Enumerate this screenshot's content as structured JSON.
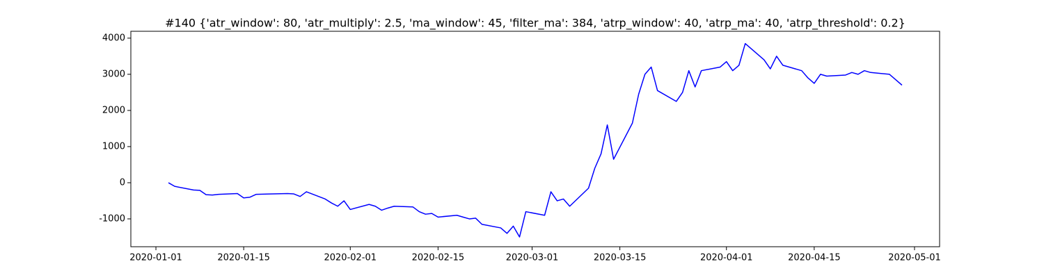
{
  "chart_data": {
    "type": "line",
    "title": "#140 {'atr_window': 80, 'atr_multiply': 2.5, 'ma_window': 45, 'filter_ma': 384, 'atrp_window': 40, 'atrp_ma': 40, 'atrp_threshold': 0.2}",
    "x": [
      "2020-01-03",
      "2020-01-04",
      "2020-01-07",
      "2020-01-08",
      "2020-01-09",
      "2020-01-10",
      "2020-01-11",
      "2020-01-14",
      "2020-01-15",
      "2020-01-16",
      "2020-01-17",
      "2020-01-22",
      "2020-01-23",
      "2020-01-24",
      "2020-01-25",
      "2020-01-28",
      "2020-01-29",
      "2020-01-30",
      "2020-01-31",
      "2020-02-01",
      "2020-02-04",
      "2020-02-05",
      "2020-02-06",
      "2020-02-07",
      "2020-02-08",
      "2020-02-11",
      "2020-02-12",
      "2020-02-13",
      "2020-02-14",
      "2020-02-15",
      "2020-02-18",
      "2020-02-19",
      "2020-02-20",
      "2020-02-21",
      "2020-02-22",
      "2020-02-25",
      "2020-02-26",
      "2020-02-27",
      "2020-02-28",
      "2020-02-29",
      "2020-03-03",
      "2020-03-04",
      "2020-03-05",
      "2020-03-06",
      "2020-03-07",
      "2020-03-10",
      "2020-03-11",
      "2020-03-12",
      "2020-03-13",
      "2020-03-14",
      "2020-03-17",
      "2020-03-18",
      "2020-03-19",
      "2020-03-20",
      "2020-03-21",
      "2020-03-24",
      "2020-03-25",
      "2020-03-26",
      "2020-03-27",
      "2020-03-28",
      "2020-03-31",
      "2020-04-01",
      "2020-04-02",
      "2020-04-03",
      "2020-04-04",
      "2020-04-07",
      "2020-04-08",
      "2020-04-09",
      "2020-04-10",
      "2020-04-13",
      "2020-04-14",
      "2020-04-15",
      "2020-04-16",
      "2020-04-17",
      "2020-04-20",
      "2020-04-21",
      "2020-04-22",
      "2020-04-23",
      "2020-04-24",
      "2020-04-27",
      "2020-04-28",
      "2020-04-29"
    ],
    "series": [
      {
        "color": "#0000ff",
        "values": [
          0,
          -100,
          -200,
          -210,
          -330,
          -340,
          -320,
          -300,
          -420,
          -400,
          -320,
          -300,
          -310,
          -380,
          -250,
          -450,
          -560,
          -650,
          -500,
          -740,
          -600,
          -650,
          -760,
          -700,
          -650,
          -670,
          -800,
          -870,
          -850,
          -950,
          -900,
          -950,
          -1000,
          -980,
          -1150,
          -1250,
          -1400,
          -1200,
          -1500,
          -800,
          -900,
          -250,
          -500,
          -450,
          -650,
          -150,
          400,
          800,
          1600,
          650,
          1650,
          2450,
          3000,
          3200,
          2550,
          2250,
          2500,
          3100,
          2650,
          3100,
          3200,
          3350,
          3100,
          3250,
          3850,
          3400,
          3150,
          3500,
          3250,
          3100,
          2900,
          2750,
          3000,
          2950,
          2980,
          3050,
          3000,
          3100,
          3050,
          3000,
          2850,
          2700
        ]
      }
    ],
    "xlim": [
      "2019-12-28",
      "2020-05-05"
    ],
    "xticks": [
      "2020-01-01",
      "2020-01-15",
      "2020-02-01",
      "2020-02-15",
      "2020-03-01",
      "2020-03-15",
      "2020-04-01",
      "2020-04-15",
      "2020-05-01"
    ],
    "ylim": [
      -1770,
      4190
    ],
    "yticks": [
      -1000,
      0,
      1000,
      2000,
      3000,
      4000
    ],
    "grid": false
  }
}
